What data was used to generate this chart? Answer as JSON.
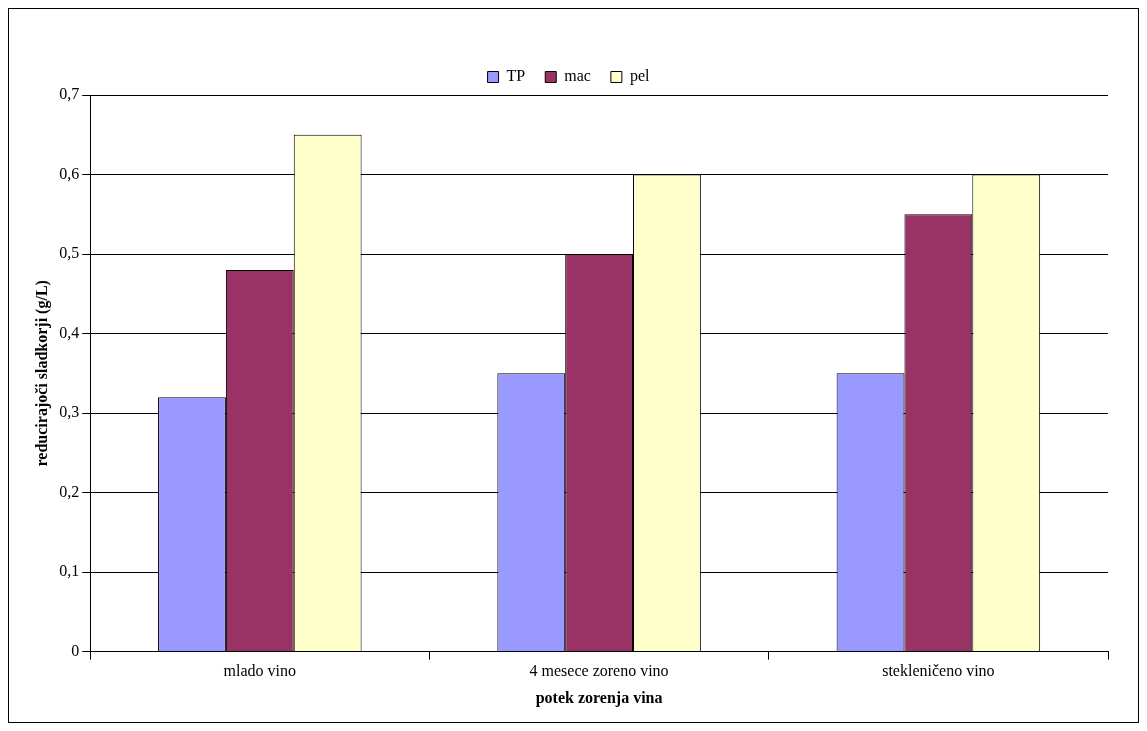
{
  "chart_data": {
    "type": "bar",
    "xlabel": "potek zorenja vina",
    "ylabel": "reducirajoči sladkorji (g/L)",
    "categories": [
      "mlado vino",
      "4 mesece zoreno vino",
      "stekleničeno vino"
    ],
    "series": [
      {
        "name": "TP",
        "color": "#9999ff",
        "values": [
          0.32,
          0.35,
          0.35
        ]
      },
      {
        "name": "mac",
        "color": "#993366",
        "values": [
          0.48,
          0.5,
          0.55
        ]
      },
      {
        "name": "pel",
        "color": "#ffffcc",
        "values": [
          0.65,
          0.6,
          0.6
        ]
      }
    ],
    "ylim": [
      0,
      0.7
    ],
    "yticks": [
      {
        "value": 0,
        "label": "0"
      },
      {
        "value": 0.1,
        "label": "0,1"
      },
      {
        "value": 0.2,
        "label": "0,2"
      },
      {
        "value": 0.3,
        "label": "0,3"
      },
      {
        "value": 0.4,
        "label": "0,4"
      },
      {
        "value": 0.5,
        "label": "0,5"
      },
      {
        "value": 0.6,
        "label": "0,6"
      },
      {
        "value": 0.7,
        "label": "0,7"
      }
    ],
    "grid": "y",
    "legend": "top"
  }
}
